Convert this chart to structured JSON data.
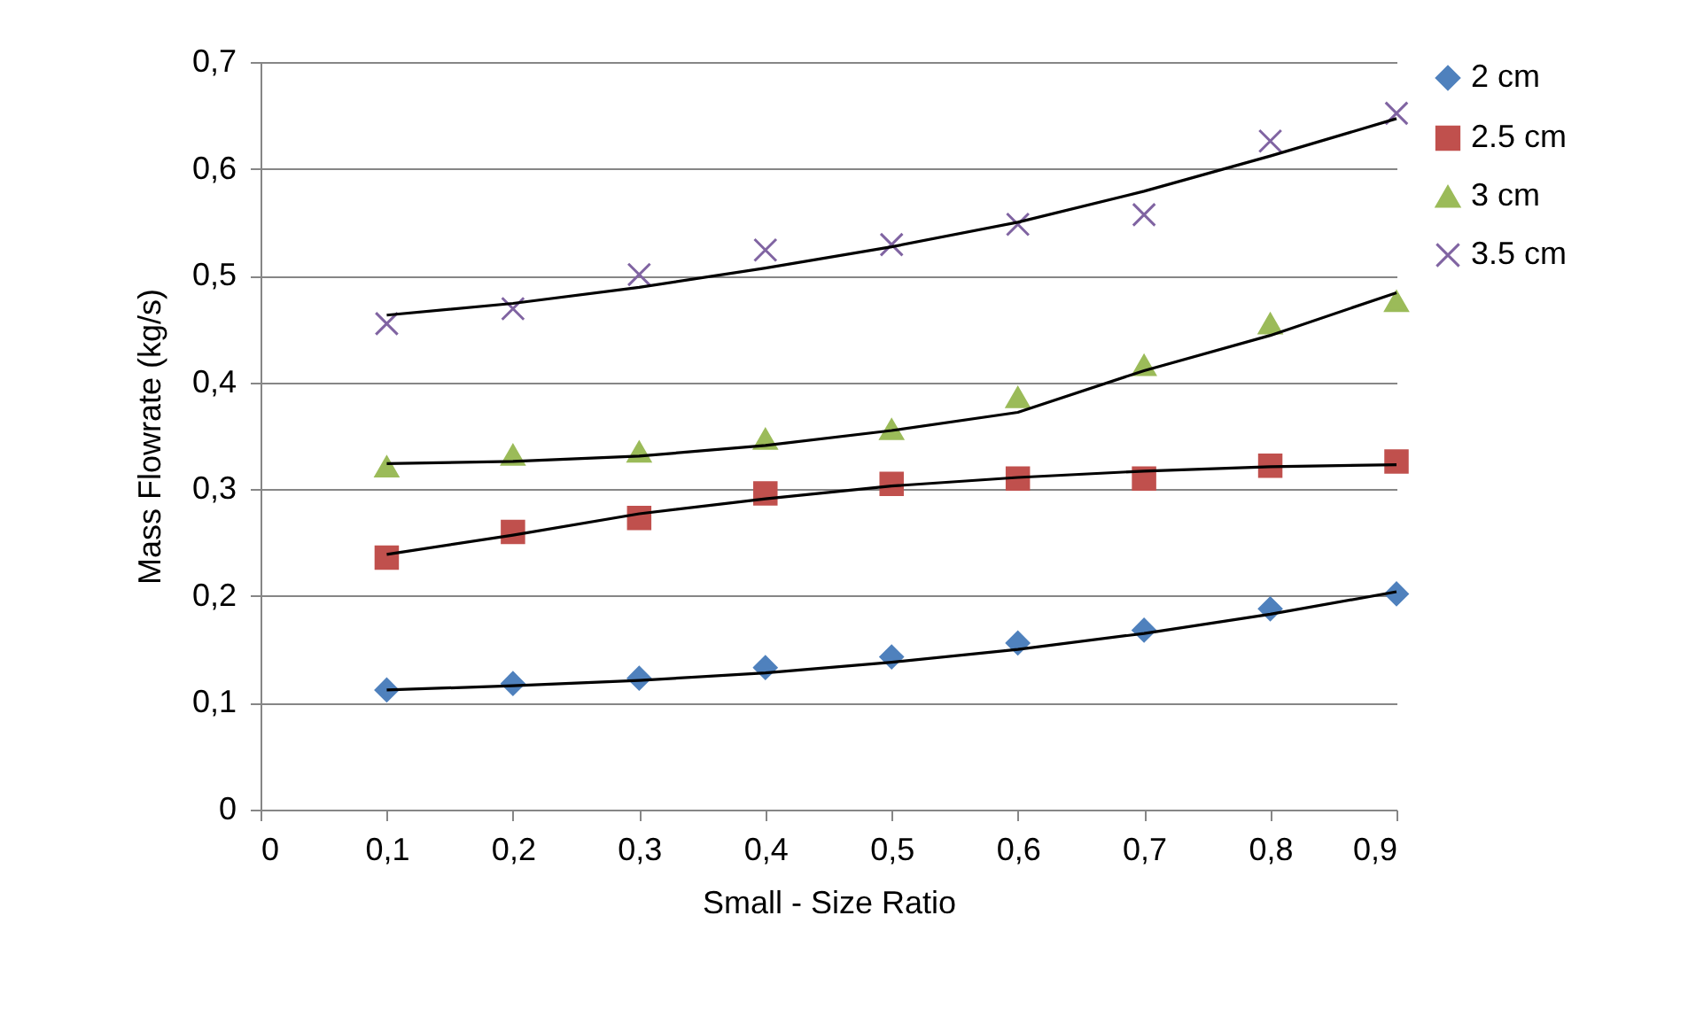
{
  "chart_data": {
    "type": "scatter",
    "xlabel": "Small - Size Ratio",
    "ylabel": "Mass Flowrate (kg/s)",
    "xlim": [
      0,
      0.9
    ],
    "xticks": [
      {
        "value": 0,
        "label": "0"
      },
      {
        "value": 0.1,
        "label": "0,1"
      },
      {
        "value": 0.2,
        "label": "0,2"
      },
      {
        "value": 0.3,
        "label": "0,3"
      },
      {
        "value": 0.4,
        "label": "0,4"
      },
      {
        "value": 0.5,
        "label": "0,5"
      },
      {
        "value": 0.6,
        "label": "0,6"
      },
      {
        "value": 0.7,
        "label": "0,7"
      },
      {
        "value": 0.8,
        "label": "0,8"
      },
      {
        "value": 0.9,
        "label": "0,9"
      }
    ],
    "ylim": [
      0,
      0.7
    ],
    "yticks": [
      {
        "value": 0,
        "label": "0"
      },
      {
        "value": 0.1,
        "label": "0,1"
      },
      {
        "value": 0.2,
        "label": "0,2"
      },
      {
        "value": 0.3,
        "label": "0,3"
      },
      {
        "value": 0.4,
        "label": "0,4"
      },
      {
        "value": 0.5,
        "label": "0,5"
      },
      {
        "value": 0.6,
        "label": "0,6"
      },
      {
        "value": 0.7,
        "label": "0,7"
      }
    ],
    "grid": "y",
    "legend": "right",
    "series": [
      {
        "name": "2 cm",
        "marker": "diamond",
        "color": "#4f81bd",
        "x": [
          0.1,
          0.2,
          0.3,
          0.4,
          0.5,
          0.6,
          0.7,
          0.8,
          0.9
        ],
        "values": [
          0.112,
          0.118,
          0.123,
          0.133,
          0.143,
          0.156,
          0.168,
          0.188,
          0.202
        ]
      },
      {
        "name": "2.5 cm",
        "marker": "square",
        "color": "#c0504d",
        "x": [
          0.1,
          0.2,
          0.3,
          0.4,
          0.5,
          0.6,
          0.7,
          0.8,
          0.9
        ],
        "values": [
          0.236,
          0.26,
          0.273,
          0.296,
          0.305,
          0.31,
          0.31,
          0.322,
          0.326
        ]
      },
      {
        "name": "3 cm",
        "marker": "triangle",
        "color": "#9bbb59",
        "x": [
          0.1,
          0.2,
          0.3,
          0.4,
          0.5,
          0.6,
          0.7,
          0.8,
          0.9
        ],
        "values": [
          0.321,
          0.332,
          0.335,
          0.347,
          0.356,
          0.386,
          0.416,
          0.455,
          0.476
        ]
      },
      {
        "name": "3.5 cm",
        "marker": "cross",
        "color": "#8064a2",
        "x": [
          0.1,
          0.2,
          0.3,
          0.4,
          0.5,
          0.6,
          0.7,
          0.8,
          0.9
        ],
        "values": [
          0.455,
          0.469,
          0.501,
          0.524,
          0.529,
          0.548,
          0.557,
          0.626,
          0.652
        ]
      },
      {
        "type": "line",
        "color": "#000000",
        "x": [
          0.1,
          0.2,
          0.3,
          0.4,
          0.5,
          0.6,
          0.7,
          0.8,
          0.9
        ],
        "values": [
          0.112,
          0.116,
          0.121,
          0.128,
          0.138,
          0.15,
          0.165,
          0.183,
          0.204
        ]
      },
      {
        "type": "line",
        "color": "#000000",
        "x": [
          0.1,
          0.2,
          0.3,
          0.4,
          0.5,
          0.6,
          0.7,
          0.8,
          0.9
        ],
        "values": [
          0.239,
          0.257,
          0.277,
          0.291,
          0.303,
          0.311,
          0.317,
          0.321,
          0.323
        ]
      },
      {
        "type": "line",
        "color": "#000000",
        "x": [
          0.1,
          0.2,
          0.3,
          0.4,
          0.5,
          0.6,
          0.7,
          0.8,
          0.9
        ],
        "values": [
          0.324,
          0.326,
          0.331,
          0.341,
          0.355,
          0.372,
          0.411,
          0.444,
          0.484
        ]
      },
      {
        "type": "line",
        "color": "#000000",
        "x": [
          0.1,
          0.2,
          0.3,
          0.4,
          0.5,
          0.6,
          0.7,
          0.8,
          0.9
        ],
        "values": [
          0.463,
          0.474,
          0.489,
          0.507,
          0.527,
          0.55,
          0.579,
          0.612,
          0.647
        ]
      }
    ]
  }
}
